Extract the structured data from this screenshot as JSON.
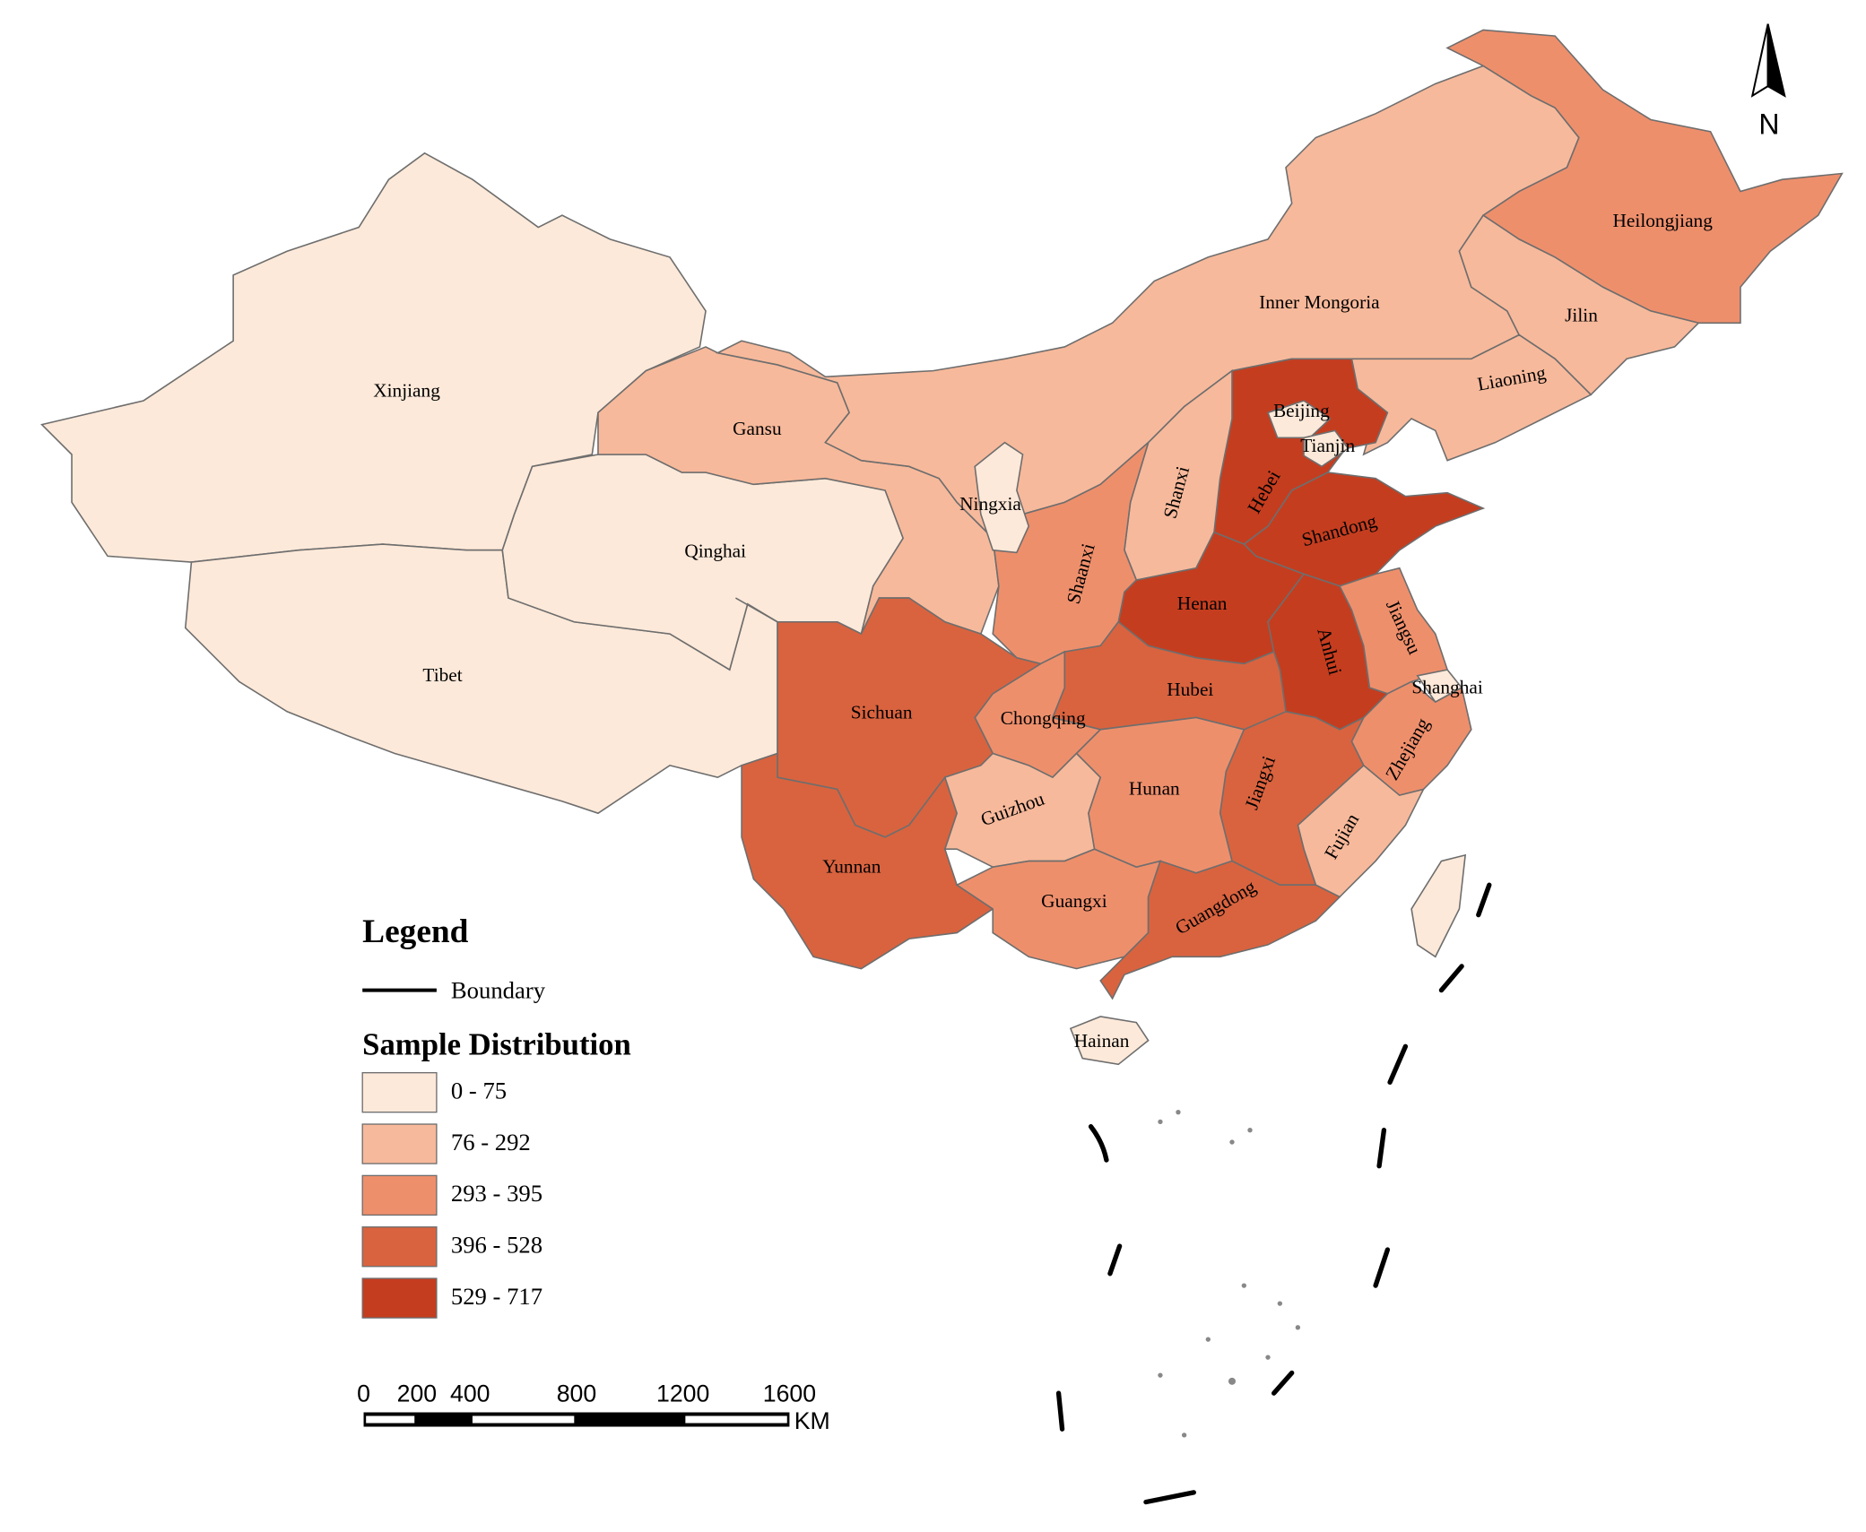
{
  "north": "N",
  "legend": {
    "title": "Legend",
    "boundary": "Boundary",
    "subtitle": "Sample Distribution",
    "classes": [
      {
        "label": "0 - 75",
        "color": "#fde9d9"
      },
      {
        "label": "76 - 292",
        "color": "#f7b99b"
      },
      {
        "label": "293 - 395",
        "color": "#ee8f6c"
      },
      {
        "label": "396 - 528",
        "color": "#d9633f"
      },
      {
        "label": "529 - 717",
        "color": "#c53d1f"
      }
    ]
  },
  "scale_bar": {
    "ticks": [
      0,
      200,
      400,
      800,
      1200,
      1600
    ],
    "unit": "KM"
  },
  "provinces": [
    {
      "name": "Xinjiang",
      "class": 0
    },
    {
      "name": "Tibet",
      "class": 0
    },
    {
      "name": "Qinghai",
      "class": 0
    },
    {
      "name": "Gansu",
      "class": 1
    },
    {
      "name": "Inner Mongoria",
      "class": 1
    },
    {
      "name": "Heilongjiang",
      "class": 2
    },
    {
      "name": "Jilin",
      "class": 1
    },
    {
      "name": "Liaoning",
      "class": 1
    },
    {
      "name": "Hebei",
      "class": 4
    },
    {
      "name": "Beijing",
      "class": 0
    },
    {
      "name": "Tianjin",
      "class": 0
    },
    {
      "name": "Shanxi",
      "class": 1
    },
    {
      "name": "Shandong",
      "class": 4
    },
    {
      "name": "Henan",
      "class": 4
    },
    {
      "name": "Anhui",
      "class": 4
    },
    {
      "name": "Jiangsu",
      "class": 2
    },
    {
      "name": "Shanghai",
      "class": 0
    },
    {
      "name": "Zhejiang",
      "class": 2
    },
    {
      "name": "Fujian",
      "class": 1
    },
    {
      "name": "Jiangxi",
      "class": 3
    },
    {
      "name": "Shaanxi",
      "class": 2
    },
    {
      "name": "Ningxia",
      "class": 0
    },
    {
      "name": "Hubei",
      "class": 3
    },
    {
      "name": "Chongqing",
      "class": 2
    },
    {
      "name": "Sichuan",
      "class": 3
    },
    {
      "name": "Yunnan",
      "class": 3
    },
    {
      "name": "Guizhou",
      "class": 1
    },
    {
      "name": "Hunan",
      "class": 2
    },
    {
      "name": "Guangxi",
      "class": 2
    },
    {
      "name": "Guangdong",
      "class": 3
    },
    {
      "name": "Hainan",
      "class": 0
    },
    {
      "class": 0
    }
  ]
}
